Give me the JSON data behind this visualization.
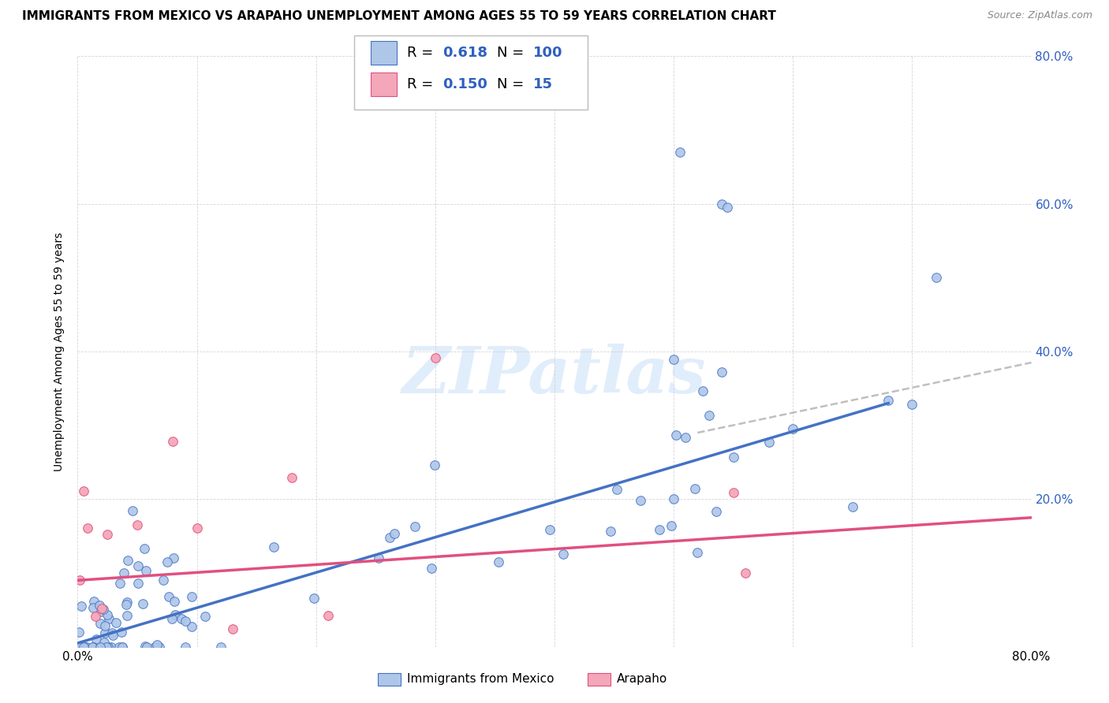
{
  "title": "IMMIGRANTS FROM MEXICO VS ARAPAHO UNEMPLOYMENT AMONG AGES 55 TO 59 YEARS CORRELATION CHART",
  "source": "Source: ZipAtlas.com",
  "ylabel": "Unemployment Among Ages 55 to 59 years",
  "xlim": [
    0.0,
    0.8
  ],
  "ylim": [
    0.0,
    0.8
  ],
  "blue_color": "#aec6e8",
  "blue_edge_color": "#4472c4",
  "pink_color": "#f4a7b9",
  "pink_edge_color": "#e05080",
  "blue_line_color": "#4472c4",
  "pink_line_color": "#e05080",
  "dashed_color": "#aaaaaa",
  "right_tick_color": "#3060c0",
  "grid_color": "#cccccc",
  "watermark_color": "#c8dff8",
  "legend_blue_r": "0.618",
  "legend_blue_n": "100",
  "legend_pink_r": "0.150",
  "legend_pink_n": "15",
  "blue_line_x0": 0.0,
  "blue_line_y0": 0.005,
  "blue_line_x1": 0.68,
  "blue_line_y1": 0.33,
  "pink_line_x0": 0.0,
  "pink_line_y0": 0.09,
  "pink_line_x1": 0.8,
  "pink_line_y1": 0.175,
  "dashed_line_x0": 0.52,
  "dashed_line_y0": 0.29,
  "dashed_line_x1": 0.8,
  "dashed_line_y1": 0.385,
  "title_fontsize": 11,
  "label_fontsize": 10,
  "tick_fontsize": 11,
  "legend_fontsize": 13,
  "watermark_fontsize": 60,
  "scatter_size": 70
}
